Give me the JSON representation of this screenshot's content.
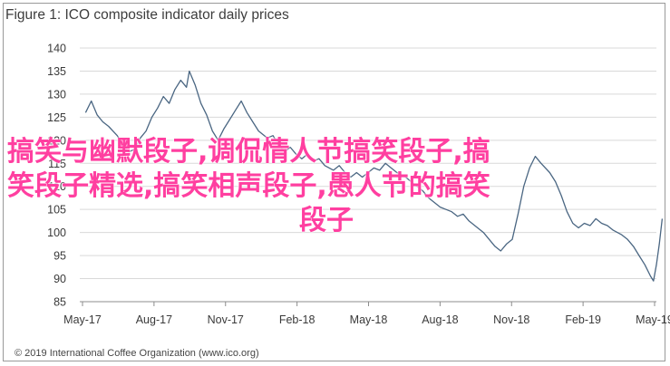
{
  "chart_data": {
    "type": "line",
    "title": "Figure 1: ICO composite indicator daily prices",
    "xlabel": "",
    "ylabel": "",
    "ylim": [
      85,
      140
    ],
    "yticks": [
      85,
      90,
      95,
      100,
      105,
      110,
      115,
      120,
      125,
      130,
      135,
      140
    ],
    "xtick_labels": [
      "May-17",
      "Aug-17",
      "Nov-17",
      "Feb-18",
      "May-18",
      "Aug-18",
      "Nov-18",
      "Feb-19",
      "May-19"
    ],
    "xrange": [
      2017.25,
      2019.25
    ],
    "grid": "horizontal",
    "legend": "none",
    "line_color": "#4a6682",
    "series": [
      {
        "values": [
          [
            2017.27,
            126.0
          ],
          [
            2017.29,
            128.5
          ],
          [
            2017.31,
            125.5
          ],
          [
            2017.33,
            124.0
          ],
          [
            2017.35,
            123.0
          ],
          [
            2017.38,
            121.0
          ],
          [
            2017.4,
            119.0
          ],
          [
            2017.42,
            117.5
          ],
          [
            2017.44,
            118.0
          ],
          [
            2017.46,
            120.5
          ],
          [
            2017.48,
            122.0
          ],
          [
            2017.5,
            125.0
          ],
          [
            2017.52,
            127.0
          ],
          [
            2017.54,
            129.5
          ],
          [
            2017.56,
            128.0
          ],
          [
            2017.58,
            131.0
          ],
          [
            2017.6,
            133.0
          ],
          [
            2017.62,
            131.5
          ],
          [
            2017.63,
            135.0
          ],
          [
            2017.65,
            132.0
          ],
          [
            2017.67,
            128.0
          ],
          [
            2017.69,
            125.5
          ],
          [
            2017.71,
            122.0
          ],
          [
            2017.73,
            120.0
          ],
          [
            2017.75,
            122.5
          ],
          [
            2017.77,
            124.5
          ],
          [
            2017.79,
            126.5
          ],
          [
            2017.81,
            128.5
          ],
          [
            2017.83,
            126.0
          ],
          [
            2017.85,
            124.0
          ],
          [
            2017.87,
            122.0
          ],
          [
            2017.9,
            120.5
          ],
          [
            2017.92,
            121.0
          ],
          [
            2017.94,
            119.0
          ],
          [
            2017.96,
            117.5
          ],
          [
            2017.98,
            118.5
          ],
          [
            2018.0,
            117.0
          ],
          [
            2018.02,
            116.0
          ],
          [
            2018.04,
            117.0
          ],
          [
            2018.06,
            115.5
          ],
          [
            2018.08,
            116.0
          ],
          [
            2018.1,
            114.5
          ],
          [
            2018.13,
            113.5
          ],
          [
            2018.15,
            114.5
          ],
          [
            2018.17,
            113.0
          ],
          [
            2018.19,
            112.0
          ],
          [
            2018.21,
            113.0
          ],
          [
            2018.23,
            112.0
          ],
          [
            2018.25,
            113.0
          ],
          [
            2018.27,
            114.0
          ],
          [
            2018.29,
            113.5
          ],
          [
            2018.31,
            115.0
          ],
          [
            2018.33,
            114.0
          ],
          [
            2018.35,
            113.0
          ],
          [
            2018.38,
            112.0
          ],
          [
            2018.4,
            111.0
          ],
          [
            2018.42,
            110.0
          ],
          [
            2018.44,
            109.0
          ],
          [
            2018.46,
            107.5
          ],
          [
            2018.48,
            106.5
          ],
          [
            2018.5,
            105.5
          ],
          [
            2018.52,
            105.0
          ],
          [
            2018.54,
            104.5
          ],
          [
            2018.56,
            103.5
          ],
          [
            2018.58,
            104.0
          ],
          [
            2018.6,
            102.5
          ],
          [
            2018.63,
            101.0
          ],
          [
            2018.65,
            100.0
          ],
          [
            2018.67,
            98.5
          ],
          [
            2018.69,
            97.0
          ],
          [
            2018.71,
            96.0
          ],
          [
            2018.73,
            97.5
          ],
          [
            2018.75,
            98.5
          ],
          [
            2018.77,
            104.0
          ],
          [
            2018.79,
            110.0
          ],
          [
            2018.81,
            114.0
          ],
          [
            2018.83,
            116.5
          ],
          [
            2018.85,
            115.0
          ],
          [
            2018.88,
            113.0
          ],
          [
            2018.9,
            111.0
          ],
          [
            2018.92,
            108.0
          ],
          [
            2018.94,
            104.5
          ],
          [
            2018.96,
            102.0
          ],
          [
            2018.98,
            101.0
          ],
          [
            2019.0,
            102.0
          ],
          [
            2019.02,
            101.5
          ],
          [
            2019.04,
            103.0
          ],
          [
            2019.06,
            102.0
          ],
          [
            2019.08,
            101.5
          ],
          [
            2019.1,
            100.5
          ],
          [
            2019.13,
            99.5
          ],
          [
            2019.15,
            98.5
          ],
          [
            2019.17,
            97.0
          ],
          [
            2019.19,
            95.0
          ],
          [
            2019.21,
            93.0
          ],
          [
            2019.23,
            90.5
          ],
          [
            2019.24,
            89.5
          ],
          [
            2019.25,
            93.0
          ],
          [
            2019.26,
            97.5
          ],
          [
            2019.27,
            103.0
          ]
        ]
      }
    ]
  },
  "source": "© 2019 International Coffee Organization (www.ico.org)",
  "overlay": {
    "line1": "搞笑与幽默段子,调侃情人节搞笑段子,搞",
    "line2": "笑段子精选,搞笑相声段子,愚人节的搞笑",
    "line3": "段子"
  }
}
